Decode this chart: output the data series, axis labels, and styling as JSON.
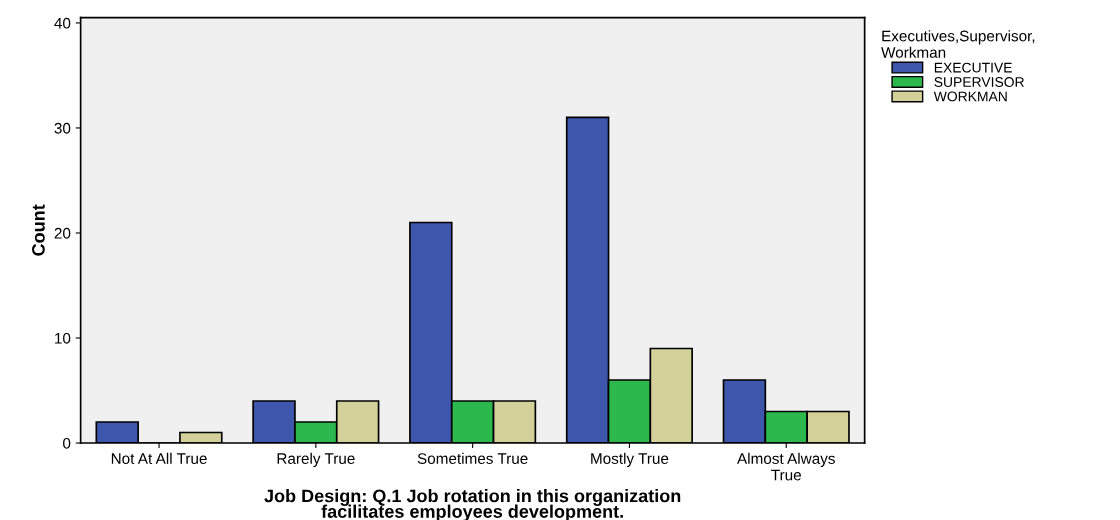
{
  "chart_data": {
    "type": "bar",
    "xlabel": "Job Design: Q.1 Job rotation in this organization\nfacilitates employees development.",
    "ylabel": "Count",
    "legend_title": "Executives,Supervisor,\nWorkman",
    "categories": [
      "Not At All True",
      "Rarely True",
      "Sometimes True",
      "Mostly True",
      "Almost Always\nTrue"
    ],
    "series": [
      {
        "name": "EXECUTIVE",
        "color": "#3f56ad",
        "values": [
          2,
          4,
          21,
          31,
          6
        ]
      },
      {
        "name": "SUPERVISOR",
        "color": "#2db84d",
        "values": [
          0,
          2,
          4,
          6,
          3
        ]
      },
      {
        "name": "WORKMAN",
        "color": "#d4d09a",
        "values": [
          1,
          4,
          4,
          9,
          3
        ]
      }
    ],
    "ylim": [
      0,
      40.5
    ],
    "yticks": [
      0,
      10,
      20,
      30,
      40
    ],
    "grid": false,
    "legend": "top right"
  }
}
